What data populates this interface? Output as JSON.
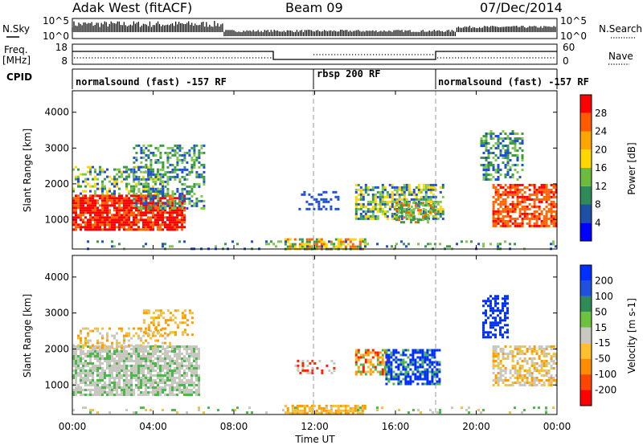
{
  "header": {
    "site": "Adak West (fitACF)",
    "beam": "Beam 09",
    "date": "07/Dec/2014"
  },
  "strips": {
    "nsky_label": "N.Sky",
    "nsky_ticks": [
      "10^5",
      "10^0"
    ],
    "nsearch_label": "N.Search",
    "nsearch_ticks": [
      "10^5",
      "10^0"
    ],
    "freq_label_1": "Freq.",
    "freq_label_2": "[MHz]",
    "freq_ticks": [
      "18",
      "8"
    ],
    "nave_label": "Nave",
    "nave_ticks": [
      "60",
      "0"
    ],
    "cpid_label": "CPID",
    "cpid_segments": [
      {
        "label": "normalsound (fast) -157 RF",
        "start": 0,
        "end": 12
      },
      {
        "label": "rbsp 200 RF",
        "start": 12,
        "end": 18
      },
      {
        "label": "normalsound (fast) -157 RF",
        "start": 18,
        "end": 24
      }
    ]
  },
  "chart_data": [
    {
      "type": "heatmap",
      "name": "Power",
      "ylabel": "Slant Range [km]",
      "ylim": [
        180,
        4600
      ],
      "yticks": [
        "1000",
        "2000",
        "3000",
        "4000"
      ],
      "colorbar_label": "Power [dB]",
      "colorbar_levels": [
        "4",
        "8",
        "12",
        "16",
        "20",
        "24",
        "28"
      ],
      "colorbar_colors": [
        "#0000ff",
        "#1f4fa6",
        "#2e8b57",
        "#6cbb3c",
        "#ffd700",
        "#ffa500",
        "#ff5a00",
        "#ff0000"
      ]
    },
    {
      "type": "heatmap",
      "name": "Velocity",
      "ylabel": "Slant Range [km]",
      "ylim": [
        180,
        4600
      ],
      "yticks": [
        "1000",
        "2000",
        "3000",
        "4000"
      ],
      "colorbar_label": "Velocity [m s-1]",
      "colorbar_levels": [
        "200",
        "100",
        "50",
        "15",
        "-15",
        "-50",
        "-100",
        "-200"
      ],
      "colorbar_colors": [
        "#0030ff",
        "#2050e0",
        "#2e8b57",
        "#6cc23c",
        "#c8c8c0",
        "#ffc030",
        "#ff8c00",
        "#ff4500",
        "#ff0000"
      ]
    }
  ],
  "xaxis": {
    "label": "Time UT",
    "ticks": [
      "00:00",
      "04:00",
      "08:00",
      "12:00",
      "16:00",
      "20:00",
      "00:00"
    ],
    "range_hours": [
      0,
      24
    ]
  },
  "colors": {
    "pw_red": "#ff0000",
    "pw_orange": "#ff6600",
    "pw_green": "#3a9a4a",
    "pw_lime": "#7ec850",
    "pw_yellow": "#ffd700",
    "pw_blue": "#1f4fd6",
    "v_gray": "#c8c8c0",
    "v_blue": "#0030ff",
    "v_red": "#ff2000",
    "v_orange": "#ff9a00",
    "v_yellow": "#f0c040",
    "v_green": "#4cb84c"
  }
}
